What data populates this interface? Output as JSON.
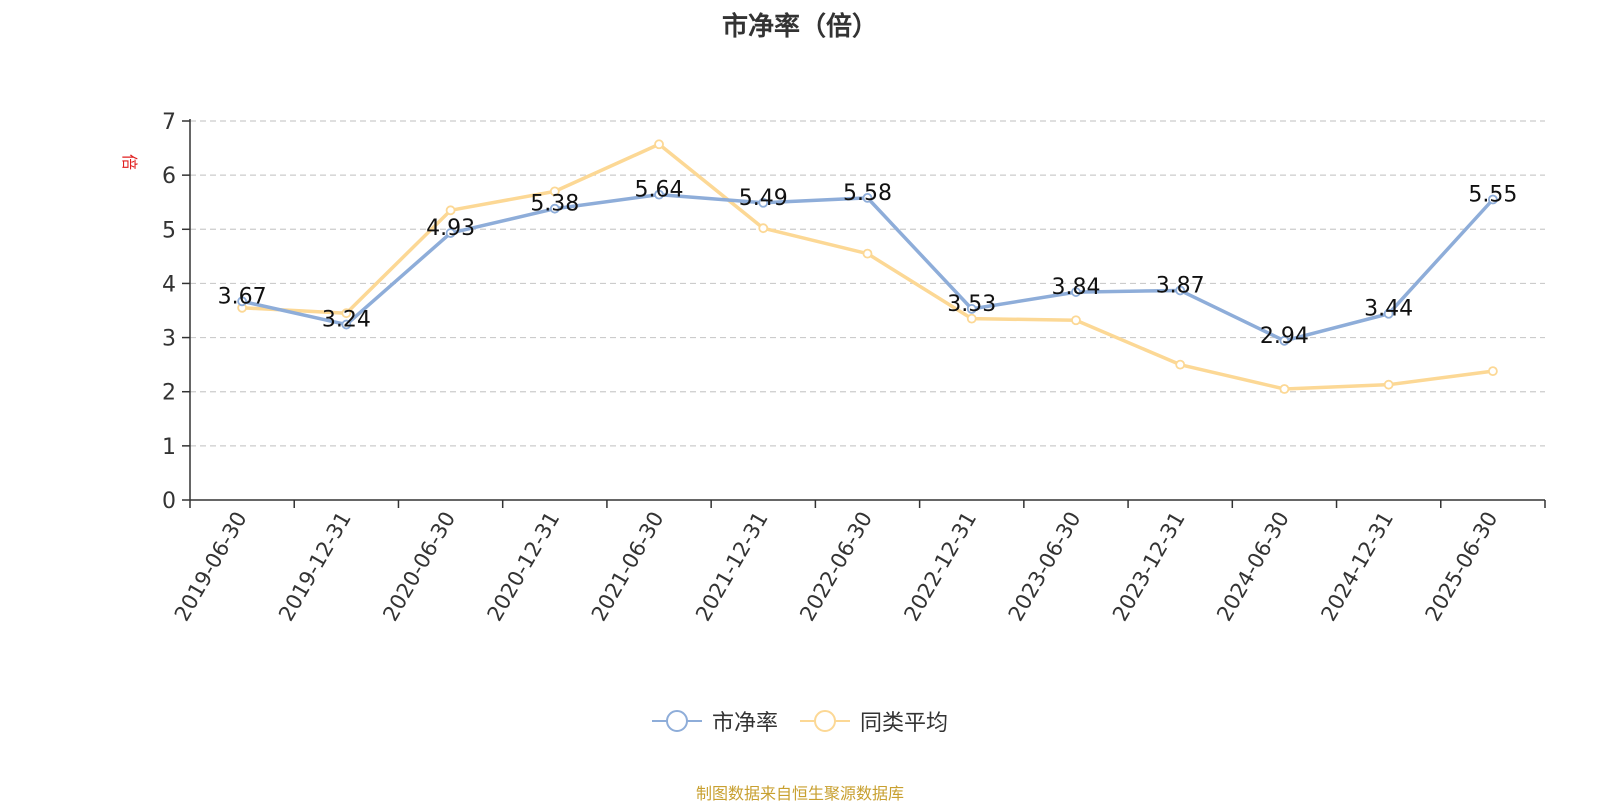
{
  "title": "市净率（倍）",
  "source_note": "制图数据来自恒生聚源数据库",
  "colors": {
    "series_pb": "#8eadd9",
    "series_avg": "#fcd895",
    "axis": "#333333",
    "grid": "#cccccc",
    "unit_label": "#e02020",
    "source": "#c8a030"
  },
  "legend": [
    {
      "name": "市净率",
      "color": "#8eadd9"
    },
    {
      "name": "同类平均",
      "color": "#fcd895"
    }
  ],
  "chart_data": {
    "type": "line",
    "ylabel": "倍",
    "ylim": [
      0,
      7
    ],
    "yticks": [
      0,
      1,
      2,
      3,
      4,
      5,
      6,
      7
    ],
    "grid": true,
    "legend_position": "bottom",
    "categories": [
      "2019-06-30",
      "2019-12-31",
      "2020-06-30",
      "2020-12-31",
      "2021-06-30",
      "2021-12-31",
      "2022-06-30",
      "2022-12-31",
      "2023-06-30",
      "2023-12-31",
      "2024-06-30",
      "2024-12-31",
      "2025-06-30"
    ],
    "series": [
      {
        "name": "市净率",
        "values": [
          3.67,
          3.24,
          4.93,
          5.38,
          5.64,
          5.49,
          5.58,
          3.53,
          3.84,
          3.87,
          2.94,
          3.44,
          5.55
        ],
        "labels": true
      },
      {
        "name": "同类平均",
        "values": [
          3.55,
          3.45,
          5.35,
          5.7,
          6.57,
          5.02,
          4.55,
          3.35,
          3.32,
          2.5,
          2.05,
          2.13,
          2.38
        ],
        "labels": false
      }
    ]
  }
}
